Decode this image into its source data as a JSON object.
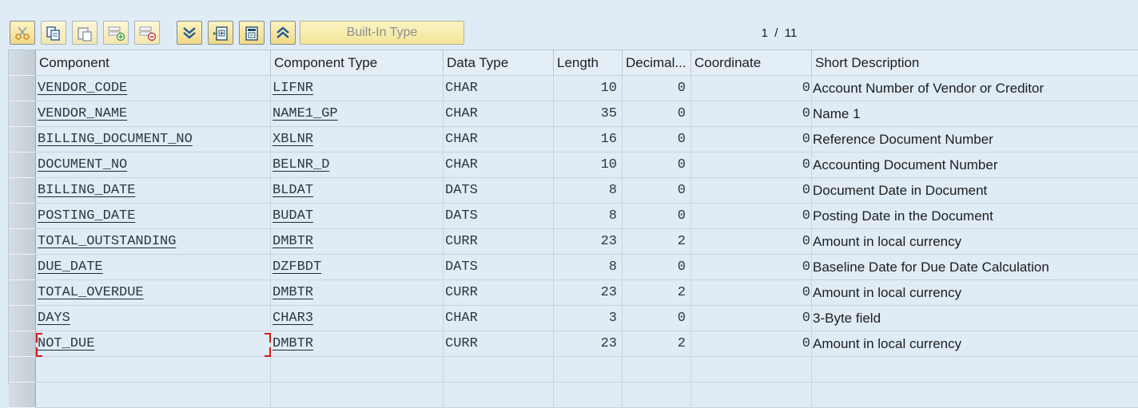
{
  "toolbar": {
    "buttons": [
      {
        "name": "cut-button",
        "icon": "scissors-icon",
        "active": true
      },
      {
        "name": "copy-button",
        "icon": "copy-icon",
        "active": false
      },
      {
        "name": "paste-button",
        "icon": "paste-icon",
        "active": false
      },
      {
        "name": "insert-row-button",
        "icon": "insert-row-icon",
        "active": false
      },
      {
        "name": "delete-row-button",
        "icon": "delete-row-icon",
        "active": false
      },
      {
        "name": "expand-button",
        "icon": "chevron-double-down-icon",
        "active": true
      },
      {
        "name": "include-button",
        "icon": "include-icon",
        "active": true
      },
      {
        "name": "exclude-button",
        "icon": "exclude-icon",
        "active": true
      },
      {
        "name": "collapse-button",
        "icon": "chevron-double-up-icon",
        "active": true
      }
    ],
    "builtin_label": "Built-In Type",
    "pager": "1  /  11"
  },
  "table": {
    "headers": [
      "Component",
      "Component Type",
      "Data Type",
      "Length",
      "Decimal...",
      "Coordinate",
      "Short Description"
    ],
    "rows": [
      {
        "component": "VENDOR_CODE",
        "type": "LIFNR",
        "datatype": "CHAR",
        "length": "10",
        "decimal": "0",
        "coordinate": "0",
        "description": "Account Number of Vendor or Creditor"
      },
      {
        "component": "VENDOR_NAME",
        "type": "NAME1_GP",
        "datatype": "CHAR",
        "length": "35",
        "decimal": "0",
        "coordinate": "0",
        "description": "Name 1"
      },
      {
        "component": "BILLING_DOCUMENT_NO",
        "type": "XBLNR",
        "datatype": "CHAR",
        "length": "16",
        "decimal": "0",
        "coordinate": "0",
        "description": "Reference Document Number"
      },
      {
        "component": "DOCUMENT_NO",
        "type": "BELNR_D",
        "datatype": "CHAR",
        "length": "10",
        "decimal": "0",
        "coordinate": "0",
        "description": "Accounting Document Number"
      },
      {
        "component": "BILLING_DATE",
        "type": "BLDAT",
        "datatype": "DATS",
        "length": "8",
        "decimal": "0",
        "coordinate": "0",
        "description": "Document Date in Document"
      },
      {
        "component": "POSTING_DATE",
        "type": "BUDAT",
        "datatype": "DATS",
        "length": "8",
        "decimal": "0",
        "coordinate": "0",
        "description": "Posting Date in the Document"
      },
      {
        "component": "TOTAL_OUTSTANDING",
        "type": "DMBTR",
        "datatype": "CURR",
        "length": "23",
        "decimal": "2",
        "coordinate": "0",
        "description": "Amount in local currency"
      },
      {
        "component": "DUE_DATE",
        "type": "DZFBDT",
        "datatype": "DATS",
        "length": "8",
        "decimal": "0",
        "coordinate": "0",
        "description": "Baseline Date for Due Date Calculation"
      },
      {
        "component": "TOTAL_OVERDUE",
        "type": "DMBTR",
        "datatype": "CURR",
        "length": "23",
        "decimal": "2",
        "coordinate": "0",
        "description": "Amount in local currency"
      },
      {
        "component": "DAYS",
        "type": "CHAR3",
        "datatype": "CHAR",
        "length": "3",
        "decimal": "0",
        "coordinate": "0",
        "description": "3-Byte field"
      },
      {
        "component": "NOT_DUE",
        "type": "DMBTR",
        "datatype": "CURR",
        "length": "23",
        "decimal": "2",
        "coordinate": "0",
        "description": "Amount in local currency"
      }
    ]
  },
  "colors": {
    "background": "#dfebf5",
    "button_yellow": "#f3e599",
    "focus_marker": "#d61a1a"
  }
}
